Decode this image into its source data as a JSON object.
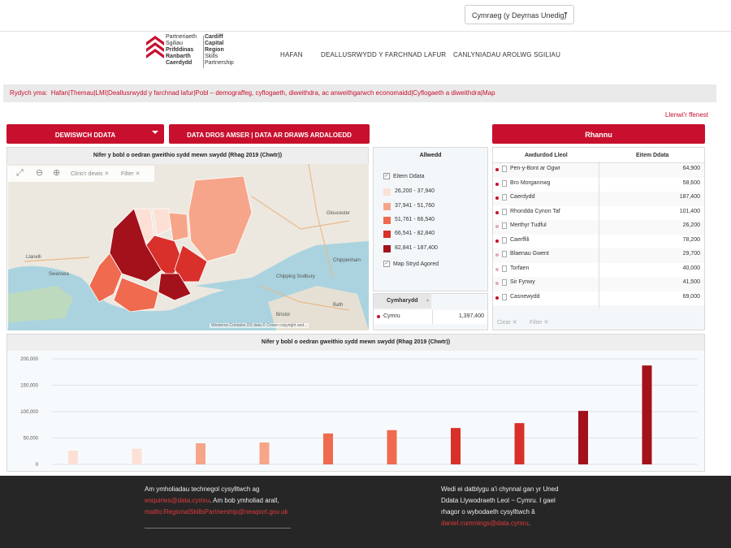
{
  "language": {
    "selected": "Cymraeg (y Deyrnas Unedig)"
  },
  "logo": {
    "left_lines": [
      "Partneriaeth",
      "Sgiliau",
      "Prifddinas",
      "Ranbarth",
      "Caerdydd"
    ],
    "right_lines": [
      "Cardiff",
      "Capital",
      "Region",
      "Skills",
      "Partnership"
    ]
  },
  "nav": {
    "items": [
      "HAFAN",
      "DEALLUSRWYDD Y FARCHNAD LAFUR",
      "CANLYNIADAU AROLWG SGILIAU"
    ]
  },
  "breadcrumb": {
    "label": "Rydych yma:",
    "path": "Hafan|Themau|LMI|Deallusrwydd y farchnad lafur|Pobl – demograffeg, cyflogaeth, diweithdra, ac anweithgarwch economaidd|Cyflogaeth a diweithdra|Map"
  },
  "share_link": "Llenwi'r ffenest",
  "buttons": {
    "choose_data": "DEWISWCH DDATA",
    "time_data": "DATA DROS AMSER | DATA AR DRAWS ARDALOEDD",
    "share": "Rhannu"
  },
  "map": {
    "title": "Nifer y bobl o oedran gweithio sydd mewn swydd (Rhag  2019 (Chwtr))",
    "toolbar": {
      "clear_pins": "Clirio'r dewis",
      "filter": "Filter"
    },
    "attribution": "Westeros Contains OS data © Crown copyright and...",
    "places": [
      "Swansea",
      "Llanelli",
      "Bristol",
      "Gloucester",
      "Chippenham",
      "Bath",
      "Chipping Sodbury",
      "Newport",
      "Cardiff"
    ]
  },
  "legend": {
    "title": "Allwedd",
    "item_label": "Eitem Ddata",
    "ranges": [
      {
        "label": "26,200 - 37,940",
        "color": "#fde0d5"
      },
      {
        "label": "37,941 - 51,760",
        "color": "#f7a58a"
      },
      {
        "label": "51,761 - 66,540",
        "color": "#ef6a4f"
      },
      {
        "label": "66,541 - 82,840",
        "color": "#d9302b"
      },
      {
        "label": "82,841 - 187,400",
        "color": "#a3111b"
      }
    ],
    "streetmap_label": "Map Stryd Agored"
  },
  "region": {
    "header": "Cymharydd",
    "name": "Cymru",
    "value": "1,397,400"
  },
  "table": {
    "headers": [
      "Awdurdod Lleol",
      "Eitem Ddata"
    ],
    "rows": [
      {
        "name": "Pen-y-Bont ar Ogwr",
        "value": "64,900",
        "color": "#ef6a4f"
      },
      {
        "name": "Bro Morgannwg",
        "value": "58,600",
        "color": "#ef6a4f"
      },
      {
        "name": "Caerdydd",
        "value": "187,400",
        "color": "#a3111b"
      },
      {
        "name": "Rhondda Cynon Taf",
        "value": "101,400",
        "color": "#a3111b"
      },
      {
        "name": "Merthyr Tudful",
        "value": "26,200",
        "color": "#fde0d5"
      },
      {
        "name": "Caerffili",
        "value": "78,200",
        "color": "#d9302b"
      },
      {
        "name": "Blaenau Gwent",
        "value": "29,700",
        "color": "#fde0d5"
      },
      {
        "name": "Torfaen",
        "value": "40,000",
        "color": "#f7a58a"
      },
      {
        "name": "Sir Fynwy",
        "value": "41,500",
        "color": "#f7a58a"
      },
      {
        "name": "Casnewydd",
        "value": "69,000",
        "color": "#d9302b"
      }
    ],
    "clear": "Clear",
    "filter": "Filter"
  },
  "chart_data": {
    "type": "bar",
    "title": "Nifer y bobl o oedran gweithio sydd mewn swydd (Rhag  2019 (Chwtr))",
    "values": [
      26200,
      29700,
      40000,
      41500,
      58600,
      64900,
      69000,
      78200,
      101400,
      187400
    ],
    "colors": [
      "#fde0d5",
      "#fde0d5",
      "#f7a58a",
      "#f7a58a",
      "#ef6a4f",
      "#ef6a4f",
      "#d9302b",
      "#d9302b",
      "#a3111b",
      "#a3111b"
    ],
    "yticks": [
      "200,000",
      "150,000",
      "100,000",
      "50,000",
      "0"
    ],
    "ylim": [
      0,
      200000
    ],
    "grid": true
  },
  "footer": {
    "left_line1": "Am ymholiadau technegol cysylltwch ag",
    "left_email": "enquiries@data.cymru",
    "left_line2": ". Am bob ymholiad arall,",
    "left_mailto": "mailto:RegionalSkillsPartnership@newport.gov.uk",
    "right_line1": "Wedi ei datblygu a'i chynnal gan yr Uned",
    "right_line2": "Ddata Llywodraeth Leol ~ Cymru. I gael",
    "right_line3": "rhagor o wybodaeth cysylltwch â",
    "right_email": "daniel.cummings@data.cymru",
    "right_end": "."
  }
}
